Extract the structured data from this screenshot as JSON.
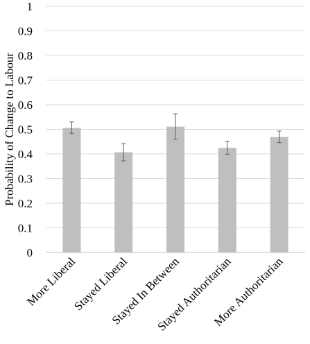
{
  "chart_data": {
    "type": "bar",
    "title": "",
    "xlabel": "",
    "ylabel": "Probability of Change to Labour",
    "ylim": [
      0,
      1
    ],
    "y_ticks": [
      "0",
      "0.1",
      "0.2",
      "0.3",
      "0.4",
      "0.5",
      "0.6",
      "0.7",
      "0.8",
      "0.9",
      "1"
    ],
    "grid": true,
    "legend": "none",
    "bar_color": "#bfbfbf",
    "error_bar_color": "#595959",
    "categories": [
      "More Liberal",
      "Stayed Liberal",
      "Stayed In Between",
      "Stayed Authoritarian",
      "More Authoritarian"
    ],
    "values": [
      0.506,
      0.407,
      0.511,
      0.425,
      0.469
    ],
    "error_low": [
      0.484,
      0.372,
      0.46,
      0.399,
      0.446
    ],
    "error_high": [
      0.53,
      0.442,
      0.563,
      0.452,
      0.493
    ]
  }
}
